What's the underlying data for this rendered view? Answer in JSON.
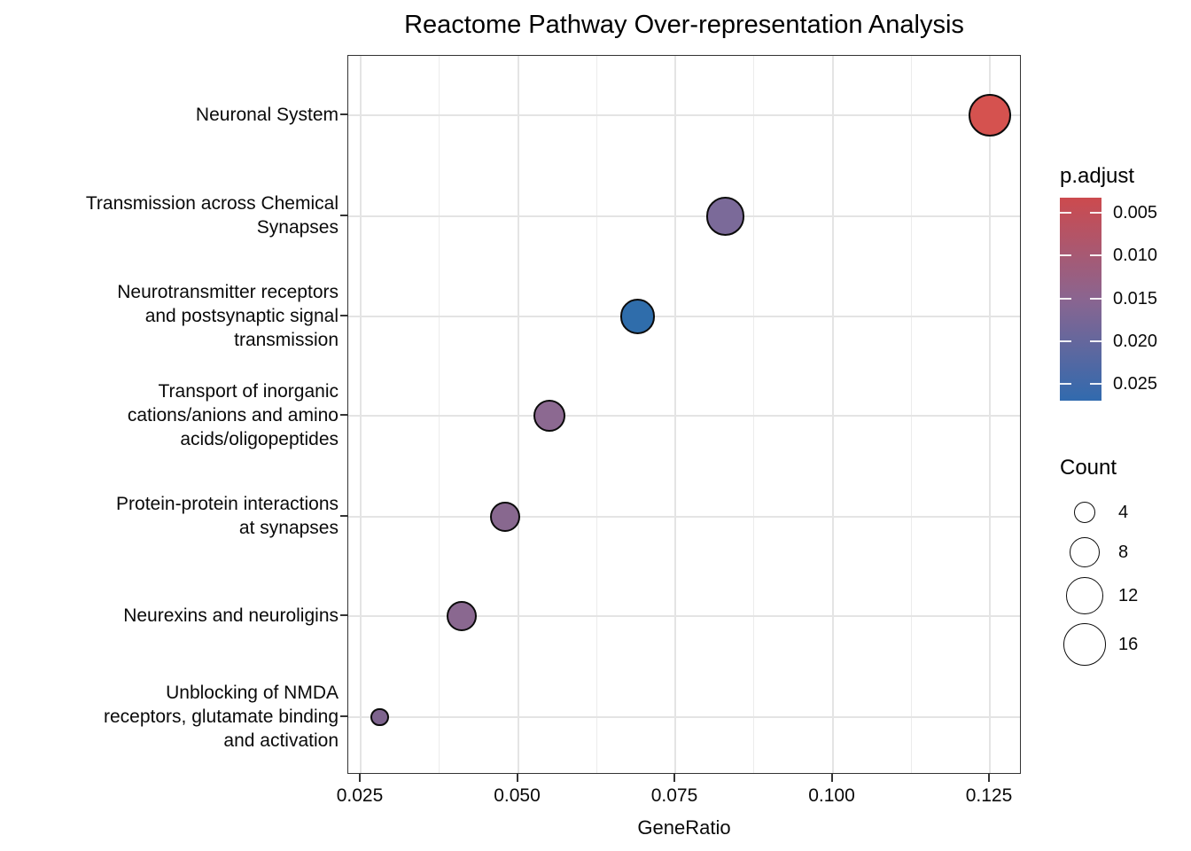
{
  "chart_data": {
    "type": "scatter",
    "title": "Reactome Pathway Over-representation Analysis",
    "xlabel": "GeneRatio",
    "ylabel": "",
    "x_ticks": [
      "0.025",
      "0.050",
      "0.075",
      "0.100",
      "0.125"
    ],
    "xlim": [
      0.023,
      0.1305
    ],
    "grid": true,
    "legend_position": "right",
    "points": [
      {
        "pathway": "Neuronal System",
        "label_lines": [
          "Neuronal System"
        ],
        "gene_ratio": 0.125,
        "count": 16,
        "p_adjust": 0.003,
        "color": "#D5524F"
      },
      {
        "pathway": "Transmission across Chemical Synapses",
        "label_lines": [
          "Transmission across Chemical",
          "Synapses"
        ],
        "gene_ratio": 0.083,
        "count": 13,
        "p_adjust": 0.019,
        "color": "#7B6A99"
      },
      {
        "pathway": "Neurotransmitter receptors and postsynaptic signal transmission",
        "label_lines": [
          "Neurotransmitter receptors",
          "and postsynaptic signal",
          "transmission"
        ],
        "gene_ratio": 0.069,
        "count": 11,
        "p_adjust": 0.026,
        "color": "#2F6DAB"
      },
      {
        "pathway": "Transport of inorganic cations/anions and amino acids/oligopeptides",
        "label_lines": [
          "Transport of inorganic",
          "cations/anions and amino",
          "acids/oligopeptides"
        ],
        "gene_ratio": 0.055,
        "count": 9,
        "p_adjust": 0.016,
        "color": "#8C6991"
      },
      {
        "pathway": "Protein-protein interactions at synapses",
        "label_lines": [
          "Protein-protein interactions",
          "at synapses"
        ],
        "gene_ratio": 0.048,
        "count": 8,
        "p_adjust": 0.017,
        "color": "#88688F"
      },
      {
        "pathway": "Neurexins and neuroligins",
        "label_lines": [
          "Neurexins and neuroligins"
        ],
        "gene_ratio": 0.041,
        "count": 8,
        "p_adjust": 0.016,
        "color": "#8A6890"
      },
      {
        "pathway": "Unblocking of NMDA receptors, glutamate binding and activation",
        "label_lines": [
          "Unblocking of NMDA",
          "receptors, glutamate binding",
          "and activation"
        ],
        "gene_ratio": 0.028,
        "count": 3,
        "p_adjust": 0.018,
        "color": "#7E648E"
      }
    ],
    "color_legend": {
      "title": "p.adjust",
      "tick_labels": [
        "0.005",
        "0.010",
        "0.015",
        "0.020",
        "0.025"
      ],
      "gradient_top_color": "#CC4A4E",
      "gradient_mid_color": "#8A6590",
      "gradient_bottom_color": "#316AAE",
      "value_range": [
        0.003,
        0.027
      ]
    },
    "size_legend": {
      "title": "Count",
      "entries": [
        "4",
        "8",
        "12",
        "16"
      ]
    }
  }
}
